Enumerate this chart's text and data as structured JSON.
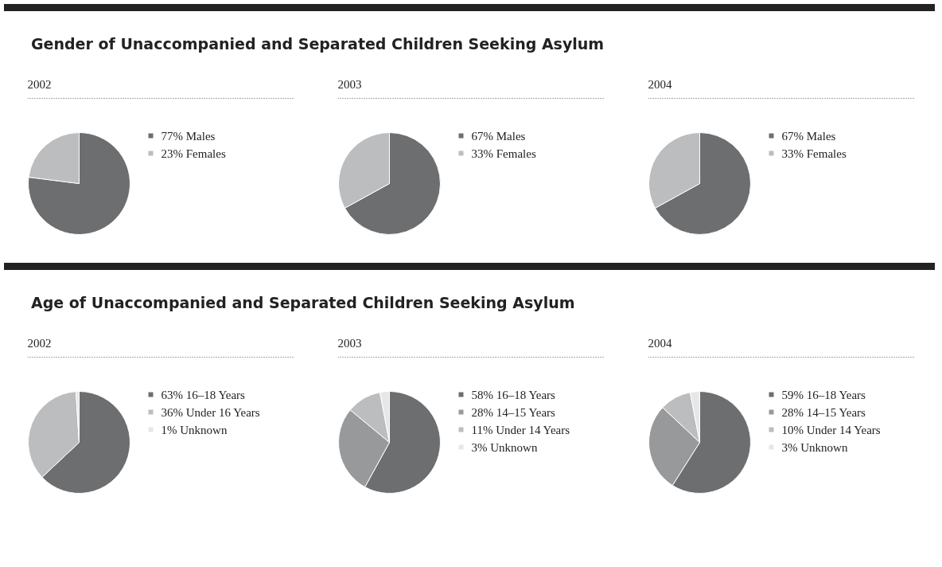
{
  "chart_data": [
    {
      "type": "pie",
      "title": "2002",
      "annotations": [
        "Gender of Unaccompanied and Separated Children Seeking Asylum"
      ],
      "categories": [
        "Males",
        "Females"
      ],
      "values": [
        77,
        23
      ],
      "value_labels": [
        "77%",
        "23%"
      ],
      "colors": [
        "#6d6e70",
        "#bcbdbf"
      ],
      "legend": "right"
    },
    {
      "type": "pie",
      "title": "2003",
      "categories": [
        "Males",
        "Females"
      ],
      "values": [
        67,
        33
      ],
      "value_labels": [
        "67%",
        "33%"
      ],
      "colors": [
        "#6d6e70",
        "#bcbdbf"
      ],
      "legend": "right"
    },
    {
      "type": "pie",
      "title": "2004",
      "categories": [
        "Males",
        "Females"
      ],
      "values": [
        67,
        33
      ],
      "value_labels": [
        "67%",
        "33%"
      ],
      "colors": [
        "#6d6e70",
        "#bcbdbf"
      ],
      "legend": "right"
    },
    {
      "type": "pie",
      "title": "2002",
      "annotations": [
        "Age of Unaccompanied and Separated Children Seeking Asylum"
      ],
      "categories": [
        "16–18 Years",
        "Under 16 Years",
        "Unknown"
      ],
      "values": [
        63,
        36,
        1
      ],
      "value_labels": [
        "63%",
        "36%",
        "1%"
      ],
      "colors": [
        "#6d6e70",
        "#bcbdbf",
        "#e6e7e8"
      ],
      "legend": "right"
    },
    {
      "type": "pie",
      "title": "2003",
      "categories": [
        "16–18 Years",
        "14–15 Years",
        "Under 14 Years",
        "Unknown"
      ],
      "values": [
        58,
        28,
        11,
        3
      ],
      "value_labels": [
        "58%",
        "28%",
        "11%",
        "3%"
      ],
      "colors": [
        "#6d6e70",
        "#98999b",
        "#bcbdbf",
        "#e6e7e8"
      ],
      "legend": "right"
    },
    {
      "type": "pie",
      "title": "2004",
      "categories": [
        "16–18 Years",
        "14–15 Years",
        "Under 14 Years",
        "Unknown"
      ],
      "values": [
        59,
        28,
        10,
        3
      ],
      "value_labels": [
        "59%",
        "28%",
        "10%",
        "3%"
      ],
      "colors": [
        "#6d6e70",
        "#98999b",
        "#bcbdbf",
        "#e6e7e8"
      ],
      "legend": "right"
    }
  ]
}
